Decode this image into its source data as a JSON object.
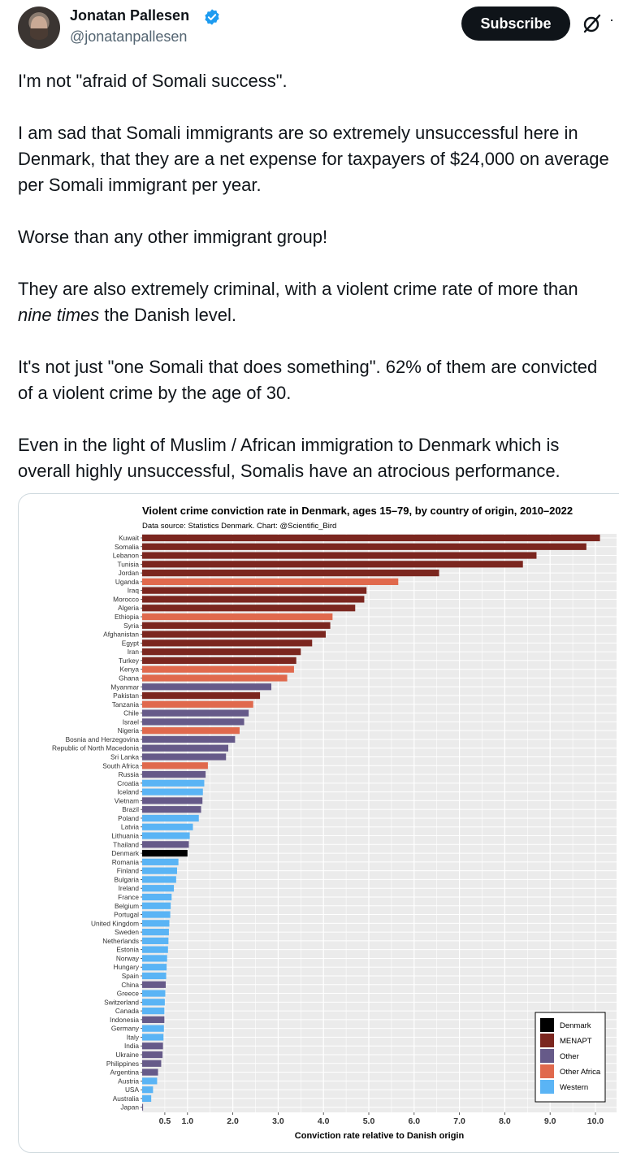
{
  "author": {
    "name": "Jonatan Pallesen",
    "handle": "@jonatanpallesen"
  },
  "actions": {
    "subscribe_label": "Subscribe",
    "grok_icon": "grok-icon",
    "more_icon": "more-icon"
  },
  "post": {
    "p1": "I'm not \"afraid of Somali success\".",
    "p2": "I am sad that Somali immigrants are so extremely unsuccessful here in Denmark, that they are a net expense for taxpayers of $24,000 on average per Somali immigrant per year.",
    "p3": "Worse than any other immigrant group!",
    "p4_pre": "They are also extremely criminal, with a violent crime rate of more than ",
    "p4_em": "nine times",
    "p4_post": " the Danish level.",
    "p5": "It's not just \"one Somali that does something\". 62% of them are convicted of a violent crime by the age of 30.",
    "p6": "Even in the light of Muslim / African immigration to Denmark which is overall highly unsuccessful, Somalis have an atrocious performance."
  },
  "colors": {
    "Denmark": "#000000",
    "MENAPT": "#7b261f",
    "Other": "#665a89",
    "Other Africa": "#e0694d",
    "Western": "#5ab4f5"
  },
  "chart_data": {
    "type": "bar",
    "orientation": "horizontal",
    "title": "Violent crime conviction rate in Denmark, ages 15–79, by country of origin, 2010–2022",
    "subtitle": "Data source: Statistics Denmark. Chart: @Scientific_Bird",
    "xlabel": "Conviction rate relative to Danish origin",
    "xlim": [
      0,
      10.2
    ],
    "xticks": [
      0.5,
      1.0,
      2.0,
      3.0,
      4.0,
      5.0,
      6.0,
      7.0,
      8.0,
      9.0,
      10.0
    ],
    "xtick_labels": [
      "0.5",
      "1.0",
      "2.0",
      "3.0",
      "4.0",
      "5.0",
      "6.0",
      "7.0",
      "8.0",
      "9.0",
      "10.0"
    ],
    "legend": {
      "position": "bottom-right",
      "entries": [
        "Denmark",
        "MENAPT",
        "Other",
        "Other Africa",
        "Western"
      ]
    },
    "bars": [
      {
        "country": "Kuwait",
        "value": 10.1,
        "group": "MENAPT"
      },
      {
        "country": "Somalia",
        "value": 9.8,
        "group": "MENAPT"
      },
      {
        "country": "Lebanon",
        "value": 8.7,
        "group": "MENAPT"
      },
      {
        "country": "Tunisia",
        "value": 8.4,
        "group": "MENAPT"
      },
      {
        "country": "Jordan",
        "value": 6.55,
        "group": "MENAPT"
      },
      {
        "country": "Uganda",
        "value": 5.65,
        "group": "Other Africa"
      },
      {
        "country": "Iraq",
        "value": 4.95,
        "group": "MENAPT"
      },
      {
        "country": "Morocco",
        "value": 4.9,
        "group": "MENAPT"
      },
      {
        "country": "Algeria",
        "value": 4.7,
        "group": "MENAPT"
      },
      {
        "country": "Ethiopia",
        "value": 4.2,
        "group": "Other Africa"
      },
      {
        "country": "Syria",
        "value": 4.15,
        "group": "MENAPT"
      },
      {
        "country": "Afghanistan",
        "value": 4.05,
        "group": "MENAPT"
      },
      {
        "country": "Egypt",
        "value": 3.75,
        "group": "MENAPT"
      },
      {
        "country": "Iran",
        "value": 3.5,
        "group": "MENAPT"
      },
      {
        "country": "Turkey",
        "value": 3.4,
        "group": "MENAPT"
      },
      {
        "country": "Kenya",
        "value": 3.35,
        "group": "Other Africa"
      },
      {
        "country": "Ghana",
        "value": 3.2,
        "group": "Other Africa"
      },
      {
        "country": "Myanmar",
        "value": 2.85,
        "group": "Other"
      },
      {
        "country": "Pakistan",
        "value": 2.6,
        "group": "MENAPT"
      },
      {
        "country": "Tanzania",
        "value": 2.45,
        "group": "Other Africa"
      },
      {
        "country": "Chile",
        "value": 2.35,
        "group": "Other"
      },
      {
        "country": "Israel",
        "value": 2.25,
        "group": "Other"
      },
      {
        "country": "Nigeria",
        "value": 2.15,
        "group": "Other Africa"
      },
      {
        "country": "Bosnia and Herzegovina",
        "value": 2.05,
        "group": "Other"
      },
      {
        "country": "Republic of North Macedonia",
        "value": 1.9,
        "group": "Other"
      },
      {
        "country": "Sri Lanka",
        "value": 1.85,
        "group": "Other"
      },
      {
        "country": "South Africa",
        "value": 1.45,
        "group": "Other Africa"
      },
      {
        "country": "Russia",
        "value": 1.4,
        "group": "Other"
      },
      {
        "country": "Croatia",
        "value": 1.37,
        "group": "Western"
      },
      {
        "country": "Iceland",
        "value": 1.34,
        "group": "Western"
      },
      {
        "country": "Vietnam",
        "value": 1.33,
        "group": "Other"
      },
      {
        "country": "Brazil",
        "value": 1.3,
        "group": "Other"
      },
      {
        "country": "Poland",
        "value": 1.25,
        "group": "Western"
      },
      {
        "country": "Latvia",
        "value": 1.12,
        "group": "Western"
      },
      {
        "country": "Lithuania",
        "value": 1.05,
        "group": "Western"
      },
      {
        "country": "Thailand",
        "value": 1.03,
        "group": "Other"
      },
      {
        "country": "Denmark",
        "value": 1.0,
        "group": "Denmark"
      },
      {
        "country": "Romania",
        "value": 0.8,
        "group": "Western"
      },
      {
        "country": "Finland",
        "value": 0.77,
        "group": "Western"
      },
      {
        "country": "Bulgaria",
        "value": 0.75,
        "group": "Western"
      },
      {
        "country": "Ireland",
        "value": 0.7,
        "group": "Western"
      },
      {
        "country": "France",
        "value": 0.65,
        "group": "Western"
      },
      {
        "country": "Belgium",
        "value": 0.63,
        "group": "Western"
      },
      {
        "country": "Portugal",
        "value": 0.62,
        "group": "Western"
      },
      {
        "country": "United Kingdom",
        "value": 0.6,
        "group": "Western"
      },
      {
        "country": "Sweden",
        "value": 0.59,
        "group": "Western"
      },
      {
        "country": "Netherlands",
        "value": 0.58,
        "group": "Western"
      },
      {
        "country": "Estonia",
        "value": 0.57,
        "group": "Western"
      },
      {
        "country": "Norway",
        "value": 0.55,
        "group": "Western"
      },
      {
        "country": "Hungary",
        "value": 0.54,
        "group": "Western"
      },
      {
        "country": "Spain",
        "value": 0.53,
        "group": "Western"
      },
      {
        "country": "China",
        "value": 0.52,
        "group": "Other"
      },
      {
        "country": "Greece",
        "value": 0.51,
        "group": "Western"
      },
      {
        "country": "Switzerland",
        "value": 0.5,
        "group": "Western"
      },
      {
        "country": "Canada",
        "value": 0.49,
        "group": "Western"
      },
      {
        "country": "Indonesia",
        "value": 0.49,
        "group": "Other"
      },
      {
        "country": "Germany",
        "value": 0.48,
        "group": "Western"
      },
      {
        "country": "Italy",
        "value": 0.47,
        "group": "Western"
      },
      {
        "country": "India",
        "value": 0.46,
        "group": "Other"
      },
      {
        "country": "Ukraine",
        "value": 0.45,
        "group": "Other"
      },
      {
        "country": "Philippines",
        "value": 0.42,
        "group": "Other"
      },
      {
        "country": "Argentina",
        "value": 0.35,
        "group": "Other"
      },
      {
        "country": "Austria",
        "value": 0.33,
        "group": "Western"
      },
      {
        "country": "USA",
        "value": 0.24,
        "group": "Western"
      },
      {
        "country": "Australia",
        "value": 0.2,
        "group": "Western"
      },
      {
        "country": "Japan",
        "value": 0.02,
        "group": "Other"
      }
    ]
  }
}
